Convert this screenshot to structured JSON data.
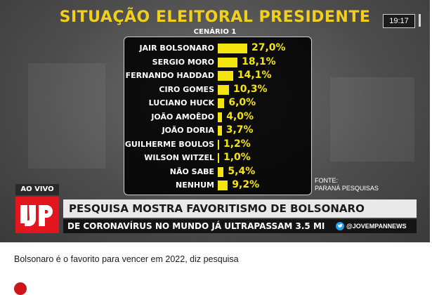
{
  "broadcast": {
    "title": "SITUAÇÃO ELEITORAL PRESIDENTE",
    "scenario": "CENÁRIO 1",
    "clock": "19:17",
    "source_line1": "FONTE:",
    "source_line2": "PARANÁ PESQUISAS",
    "live_badge": "AO VIVO",
    "headline": "PESQUISA MOSTRA FAVORITISMO DE BOLSONARO",
    "ticker": "DE CORONAVÍRUS NO MUNDO JÁ ULTRAPASSAM 3.5 MI",
    "social_handle": "@JOVEMPANNEWS",
    "social_icon": "twitter-bird-icon",
    "logo_icon": "jp-logo-icon",
    "colors": {
      "accent_yellow": "#f4e40f",
      "brand_red": "#e2161c",
      "title_yellow": "#f2d01a"
    }
  },
  "chart_data": {
    "type": "bar",
    "orientation": "horizontal",
    "title": "SITUAÇÃO ELEITORAL PRESIDENTE",
    "subtitle": "CENÁRIO 1",
    "categories": [
      "JAIR BOLSONARO",
      "SERGIO MORO",
      "FERNANDO HADDAD",
      "CIRO GOMES",
      "LUCIANO HUCK",
      "JOÃO AMOÊDO",
      "JOÃO DORIA",
      "GUILHERME BOULOS",
      "WILSON WITZEL",
      "NÃO SABE",
      "NENHUM"
    ],
    "values": [
      27.0,
      18.1,
      14.1,
      10.3,
      6.0,
      4.0,
      3.7,
      1.2,
      1.0,
      5.4,
      9.2
    ],
    "value_labels": [
      "27,0%",
      "18,1%",
      "14,1%",
      "10,3%",
      "6,0%",
      "4,0%",
      "3,7%",
      "1,2%",
      "1,0%",
      "5,4%",
      "9,2%"
    ],
    "xlim": [
      0,
      27.0
    ],
    "grid": false,
    "bar_color": "#f4e40f"
  },
  "article": {
    "caption": "Bolsonaro é o favorito para vencer em 2022, diz pesquisa"
  }
}
